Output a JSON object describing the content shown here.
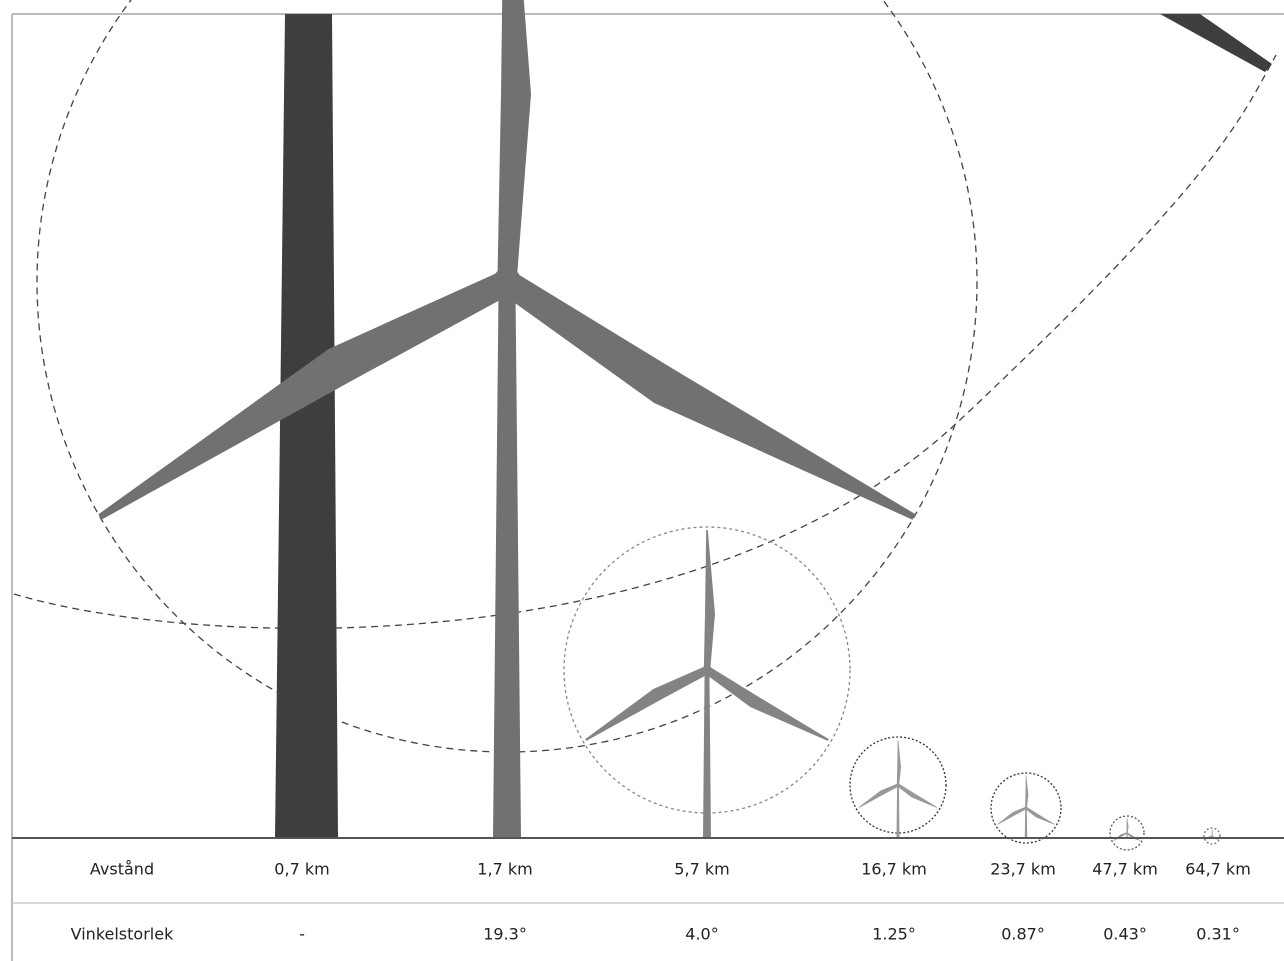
{
  "table": {
    "rows": [
      [
        "Avstånd",
        "0,7 km",
        "1,7 km",
        "5,7 km",
        "16,7 km",
        "23,7 km",
        "47,7 km",
        "64,7 km"
      ],
      [
        "Vinkelstorlek",
        "-",
        "19.3°",
        "4.0°",
        "1.25°",
        "0.87°",
        "0.43°",
        "0.31°"
      ]
    ]
  }
}
